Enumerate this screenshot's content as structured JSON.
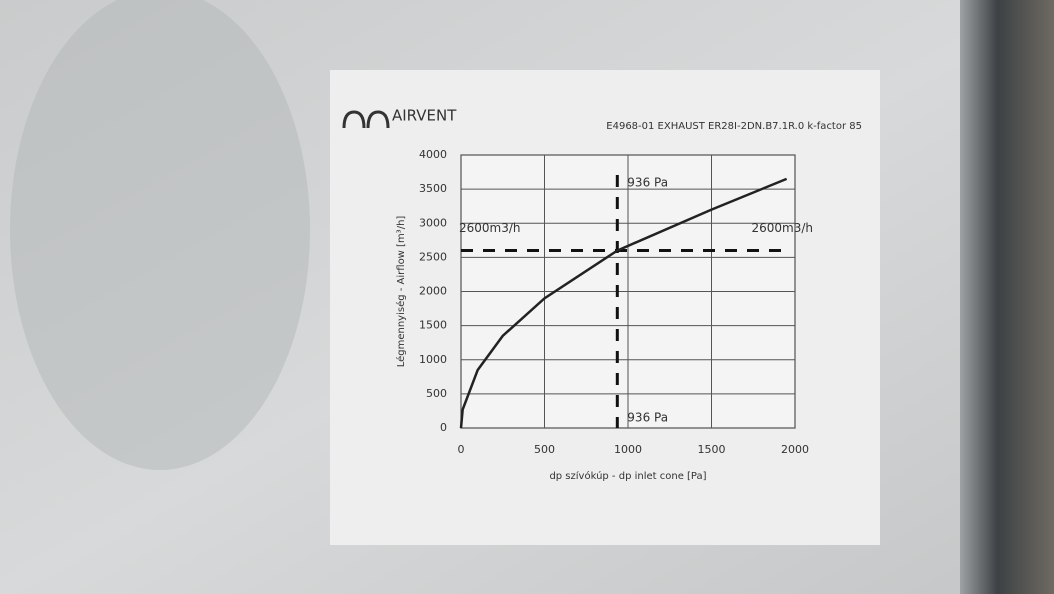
{
  "brand": "AIRVENT",
  "chart_data": {
    "type": "line",
    "title": "E4968-01 EXHAUST ER28I-2DN.B7.1R.0 k-factor 85",
    "x_label": "dp szívókúp - dp inlet cone [Pa]",
    "y_label": "Légmennyiség - Airflow [m³/h]",
    "x": [
      0,
      10,
      100,
      250,
      500,
      936,
      1500,
      1950
    ],
    "values": [
      0,
      270,
      850,
      1350,
      1900,
      2600,
      3200,
      3650
    ],
    "color": "#222222",
    "xlim": [
      0,
      2000
    ],
    "xticks": [
      0,
      500,
      1000,
      1500,
      2000
    ],
    "ylim": [
      0,
      4000
    ],
    "yticks": [
      0,
      500,
      1000,
      1500,
      2000,
      2500,
      3000,
      3500,
      4000
    ],
    "grid": true,
    "reference": {
      "x": 936,
      "y": 2600
    },
    "annotations": [
      "936 Pa",
      "936 Pa",
      "2600m3/h",
      "2600m3/h"
    ]
  }
}
